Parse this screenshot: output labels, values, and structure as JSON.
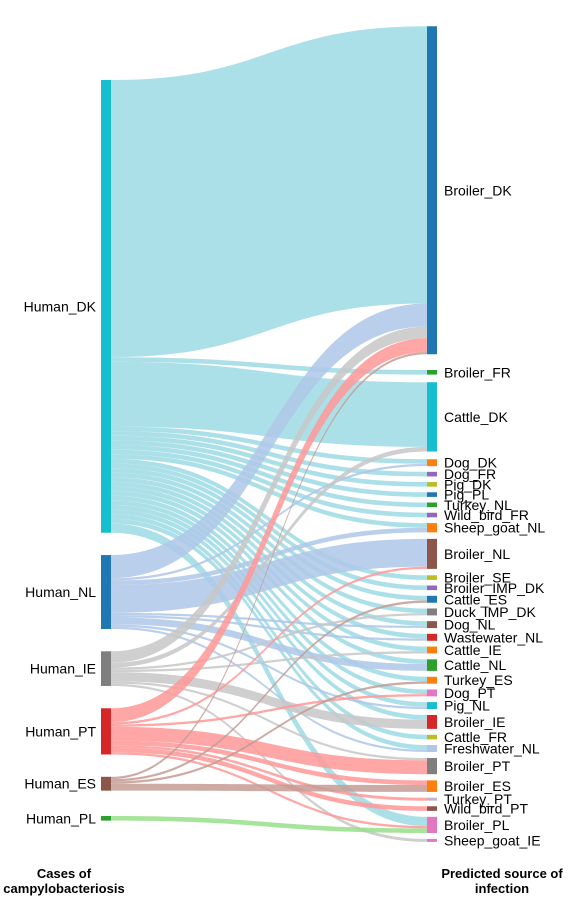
{
  "chart_data": {
    "type": "sankey",
    "left_title": "Cases of campylobacteriosis",
    "right_title": "Predicted source of infection",
    "sources": [
      {
        "id": "Human_DK",
        "label": "Human_DK",
        "color": "#17becf",
        "link_color": "#9edae5"
      },
      {
        "id": "Human_NL",
        "label": "Human_NL",
        "color": "#1f77b4",
        "link_color": "#aec7e8"
      },
      {
        "id": "Human_IE",
        "label": "Human_IE",
        "color": "#7f7f7f",
        "link_color": "#c7c7c7"
      },
      {
        "id": "Human_PT",
        "label": "Human_PT",
        "color": "#d62728",
        "link_color": "#ff9896"
      },
      {
        "id": "Human_ES",
        "label": "Human_ES",
        "color": "#8c564b",
        "link_color": "#c49c94"
      },
      {
        "id": "Human_PL",
        "label": "Human_PL",
        "color": "#2ca02c",
        "link_color": "#98df8a"
      }
    ],
    "targets": [
      {
        "id": "Broiler_DK",
        "label": "Broiler_DK",
        "color": "#1f77b4"
      },
      {
        "id": "Broiler_FR",
        "label": "Broiler_FR",
        "color": "#2ca02c"
      },
      {
        "id": "Cattle_DK",
        "label": "Cattle_DK",
        "color": "#17becf"
      },
      {
        "id": "Dog_DK",
        "label": "Dog_DK",
        "color": "#ff7f0e"
      },
      {
        "id": "Dog_FR",
        "label": "Dog_FR",
        "color": "#9467bd"
      },
      {
        "id": "Pig_DK",
        "label": "Pig_DK",
        "color": "#bcbd22"
      },
      {
        "id": "Pig_PL",
        "label": "Pig_PL",
        "color": "#1f77b4"
      },
      {
        "id": "Turkey_NL",
        "label": "Turkey_NL",
        "color": "#2ca02c"
      },
      {
        "id": "Wild_bird_FR",
        "label": "Wild_bird_FR",
        "color": "#9467bd"
      },
      {
        "id": "Sheep_goat_NL",
        "label": "Sheep_goat_NL",
        "color": "#ff7f0e"
      },
      {
        "id": "Broiler_NL",
        "label": "Broiler_NL",
        "color": "#8c564b"
      },
      {
        "id": "Broiler_SE",
        "label": "Broiler_SE",
        "color": "#bcbd22"
      },
      {
        "id": "Broiler_IMP_DK",
        "label": "Broiler_IMP_DK",
        "color": "#9467bd"
      },
      {
        "id": "Cattle_ES",
        "label": "Cattle_ES",
        "color": "#1f77b4"
      },
      {
        "id": "Duck_IMP_DK",
        "label": "Duck_IMP_DK",
        "color": "#7f7f7f"
      },
      {
        "id": "Dog_NL",
        "label": "Dog_NL",
        "color": "#8c564b"
      },
      {
        "id": "Wastewater_NL",
        "label": "Wastewater_NL",
        "color": "#d62728"
      },
      {
        "id": "Cattle_IE",
        "label": "Cattle_IE",
        "color": "#ff7f0e"
      },
      {
        "id": "Cattle_NL",
        "label": "Cattle_NL",
        "color": "#2ca02c"
      },
      {
        "id": "Turkey_ES",
        "label": "Turkey_ES",
        "color": "#ff7f0e"
      },
      {
        "id": "Dog_PT",
        "label": "Dog_PT",
        "color": "#e377c2"
      },
      {
        "id": "Pig_NL",
        "label": "Pig_NL",
        "color": "#17becf"
      },
      {
        "id": "Broiler_IE",
        "label": "Broiler_IE",
        "color": "#d62728"
      },
      {
        "id": "Cattle_FR",
        "label": "Cattle_FR",
        "color": "#bcbd22"
      },
      {
        "id": "Freshwater_NL",
        "label": "Freshwater_NL",
        "color": "#aec7e8"
      },
      {
        "id": "Broiler_PT",
        "label": "Broiler_PT",
        "color": "#7f7f7f"
      },
      {
        "id": "Broiler_ES",
        "label": "Broiler_ES",
        "color": "#ff7f0e"
      },
      {
        "id": "Turkey_PT",
        "label": "Turkey_PT",
        "color": "#c5b0d5"
      },
      {
        "id": "Wild_bird_PT",
        "label": "Wild_bird_PT",
        "color": "#8c564b"
      },
      {
        "id": "Broiler_PL",
        "label": "Broiler_PL",
        "color": "#e377c2"
      },
      {
        "id": "Sheep_goat_IE",
        "label": "Sheep_goat_IE",
        "color": "#e377c2"
      }
    ],
    "flows": [
      [
        "Human_DK",
        "Broiler_DK",
        120
      ],
      [
        "Human_DK",
        "Broiler_FR",
        2
      ],
      [
        "Human_DK",
        "Cattle_DK",
        28
      ],
      [
        "Human_DK",
        "Dog_DK",
        2
      ],
      [
        "Human_DK",
        "Dog_FR",
        2
      ],
      [
        "Human_DK",
        "Pig_DK",
        2
      ],
      [
        "Human_DK",
        "Pig_PL",
        2
      ],
      [
        "Human_DK",
        "Turkey_NL",
        2
      ],
      [
        "Human_DK",
        "Wild_bird_FR",
        2
      ],
      [
        "Human_DK",
        "Sheep_goat_NL",
        2
      ],
      [
        "Human_DK",
        "Broiler_SE",
        2
      ],
      [
        "Human_DK",
        "Broiler_IMP_DK",
        2
      ],
      [
        "Human_DK",
        "Cattle_ES",
        2
      ],
      [
        "Human_DK",
        "Duck_IMP_DK",
        2
      ],
      [
        "Human_DK",
        "Dog_NL",
        2
      ],
      [
        "Human_DK",
        "Wastewater_NL",
        2
      ],
      [
        "Human_DK",
        "Cattle_IE",
        2
      ],
      [
        "Human_DK",
        "Cattle_NL",
        2
      ],
      [
        "Human_DK",
        "Turkey_ES",
        2
      ],
      [
        "Human_DK",
        "Dog_PT",
        2
      ],
      [
        "Human_DK",
        "Pig_NL",
        2
      ],
      [
        "Human_DK",
        "Broiler_IE",
        2
      ],
      [
        "Human_DK",
        "Cattle_FR",
        2
      ],
      [
        "Human_DK",
        "Freshwater_NL",
        2
      ],
      [
        "Human_DK",
        "Broiler_PL",
        4
      ],
      [
        "Human_NL",
        "Broiler_DK",
        10
      ],
      [
        "Human_NL",
        "Dog_DK",
        1
      ],
      [
        "Human_NL",
        "Sheep_goat_NL",
        2
      ],
      [
        "Human_NL",
        "Broiler_NL",
        12
      ],
      [
        "Human_NL",
        "Cattle_NL",
        3
      ],
      [
        "Human_NL",
        "Dog_NL",
        1
      ],
      [
        "Human_NL",
        "Pig_NL",
        1
      ],
      [
        "Human_NL",
        "Freshwater_NL",
        1
      ],
      [
        "Human_NL",
        "Wastewater_NL",
        1
      ],
      [
        "Human_IE",
        "Broiler_DK",
        5
      ],
      [
        "Human_IE",
        "Cattle_DK",
        2
      ],
      [
        "Human_IE",
        "Broiler_IE",
        4
      ],
      [
        "Human_IE",
        "Cattle_IE",
        1
      ],
      [
        "Human_IE",
        "Broiler_PT",
        1
      ],
      [
        "Human_IE",
        "Duck_IMP_DK",
        1
      ],
      [
        "Human_IE",
        "Sheep_goat_IE",
        1
      ],
      [
        "Human_PT",
        "Broiler_DK",
        6
      ],
      [
        "Human_PT",
        "Broiler_NL",
        1
      ],
      [
        "Human_PT",
        "Broiler_PT",
        6
      ],
      [
        "Human_PT",
        "Broiler_ES",
        2
      ],
      [
        "Human_PT",
        "Wild_bird_PT",
        2
      ],
      [
        "Human_PT",
        "Turkey_PT",
        1
      ],
      [
        "Human_PT",
        "Dog_PT",
        1
      ],
      [
        "Human_PT",
        "Broiler_PL",
        1
      ],
      [
        "Human_ES",
        "Broiler_DK",
        1
      ],
      [
        "Human_ES",
        "Broiler_ES",
        3
      ],
      [
        "Human_ES",
        "Turkey_ES",
        1
      ],
      [
        "Human_ES",
        "Cattle_ES",
        1
      ],
      [
        "Human_PL",
        "Broiler_PL",
        2
      ]
    ]
  }
}
